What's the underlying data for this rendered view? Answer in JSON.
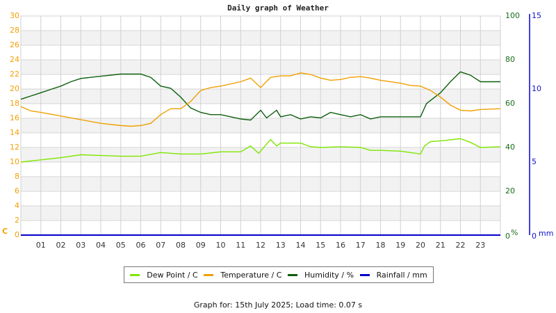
{
  "title": "Daily graph of Weather",
  "footer": "Graph for: 15th July 2025; Load time: 0.07 s",
  "axes": {
    "left_unit": "C",
    "humidity_unit": "%",
    "rain_unit": "mm",
    "left_ticks": [
      "30",
      "28",
      "26",
      "24",
      "22",
      "20",
      "18",
      "16",
      "14",
      "12",
      "10",
      "8",
      "6",
      "4",
      "2",
      "0"
    ],
    "humidity_ticks": [
      "100",
      "80",
      "60",
      "40",
      "20",
      "0"
    ],
    "rain_ticks": [
      "15",
      "10",
      "5",
      "0"
    ],
    "x_ticks": [
      "01",
      "02",
      "03",
      "04",
      "05",
      "06",
      "07",
      "08",
      "09",
      "10",
      "11",
      "12",
      "13",
      "14",
      "15",
      "16",
      "17",
      "18",
      "19",
      "20",
      "21",
      "22",
      "23"
    ]
  },
  "legend": [
    {
      "label": "Dew Point / C",
      "color": "#7fe600"
    },
    {
      "label": "Temperature / C",
      "color": "#f0a000"
    },
    {
      "label": "Humidity / %",
      "color": "#0b5e0b"
    },
    {
      "label": "Rainfall / mm",
      "color": "#0000cc"
    }
  ],
  "chart_data": {
    "type": "line",
    "title": "Daily graph of Weather",
    "xlabel": "Hour",
    "ylabel": "C",
    "xlim": [
      0,
      24
    ],
    "ylim": [
      0,
      30
    ],
    "y2lim_humidity": [
      0,
      100
    ],
    "y2lim_rain": [
      0,
      15
    ],
    "grid": true,
    "legend_position": "bottom",
    "series": [
      {
        "name": "Temperature / C",
        "color": "#f0a000",
        "axis": "left",
        "x": [
          0,
          0.5,
          1,
          2,
          3,
          4,
          5,
          5.5,
          6,
          6.5,
          7,
          7.5,
          8,
          8.5,
          9,
          9.5,
          10,
          11,
          11.5,
          12,
          12.5,
          13,
          13.5,
          14,
          14.5,
          15,
          15.5,
          16,
          16.5,
          17,
          17.5,
          18,
          19,
          19.5,
          20,
          20.5,
          21,
          21.5,
          22,
          22.5,
          23,
          24
        ],
        "values": [
          17.6,
          17.0,
          16.8,
          16.3,
          15.8,
          15.3,
          15.0,
          14.9,
          15.0,
          15.3,
          16.5,
          17.3,
          17.3,
          18.3,
          19.8,
          20.2,
          20.4,
          21.0,
          21.5,
          20.2,
          21.6,
          21.8,
          21.8,
          22.2,
          22.0,
          21.5,
          21.2,
          21.3,
          21.6,
          21.7,
          21.5,
          21.2,
          20.8,
          20.5,
          20.4,
          19.8,
          18.9,
          17.8,
          17.1,
          17.0,
          17.2,
          17.3
        ]
      },
      {
        "name": "Dew Point / C",
        "color": "#7fe600",
        "axis": "left",
        "x": [
          0,
          1,
          2,
          3,
          4,
          5,
          6,
          7,
          8,
          9,
          10,
          11,
          11.5,
          11.9,
          12.5,
          12.8,
          13,
          14,
          14.5,
          15,
          16,
          17,
          17.5,
          18,
          19,
          19.5,
          20,
          20.2,
          20.5,
          21,
          22,
          22.5,
          23,
          24
        ],
        "values": [
          10.0,
          10.3,
          10.6,
          11.0,
          10.9,
          10.8,
          10.8,
          11.3,
          11.1,
          11.1,
          11.4,
          11.4,
          12.2,
          11.2,
          13.1,
          12.2,
          12.6,
          12.6,
          12.1,
          12.0,
          12.1,
          12.0,
          11.6,
          11.6,
          11.5,
          11.3,
          11.1,
          12.2,
          12.8,
          12.9,
          13.2,
          12.7,
          12.0,
          12.1
        ]
      },
      {
        "name": "Humidity / %",
        "color": "#0b5e0b",
        "axis": "humidity",
        "x": [
          0,
          0.5,
          1,
          1.5,
          2,
          2.5,
          3,
          4,
          5,
          6,
          6.5,
          7,
          7.5,
          8,
          8.5,
          9,
          9.5,
          10,
          10.5,
          11,
          11.5,
          12,
          12.3,
          12.8,
          13,
          13.5,
          14,
          14.5,
          15,
          15.5,
          16,
          16.5,
          17,
          17.5,
          18,
          18.5,
          19,
          20,
          20.3,
          21,
          21.5,
          22,
          22.5,
          23,
          24
        ],
        "values": [
          62,
          63.5,
          65,
          66.5,
          68,
          70,
          71.5,
          72.5,
          73.5,
          73.5,
          72,
          68,
          67,
          63,
          58,
          56,
          55,
          55,
          54,
          53,
          52.5,
          57,
          53.5,
          57,
          54,
          55,
          53,
          54,
          53.5,
          56,
          55,
          54,
          55,
          53,
          54,
          54,
          54,
          54,
          60,
          65,
          70,
          74.5,
          73,
          70,
          70
        ]
      },
      {
        "name": "Rainfall / mm",
        "color": "#0000cc",
        "axis": "rain",
        "x": [
          0,
          24
        ],
        "values": [
          0,
          0
        ]
      }
    ]
  }
}
